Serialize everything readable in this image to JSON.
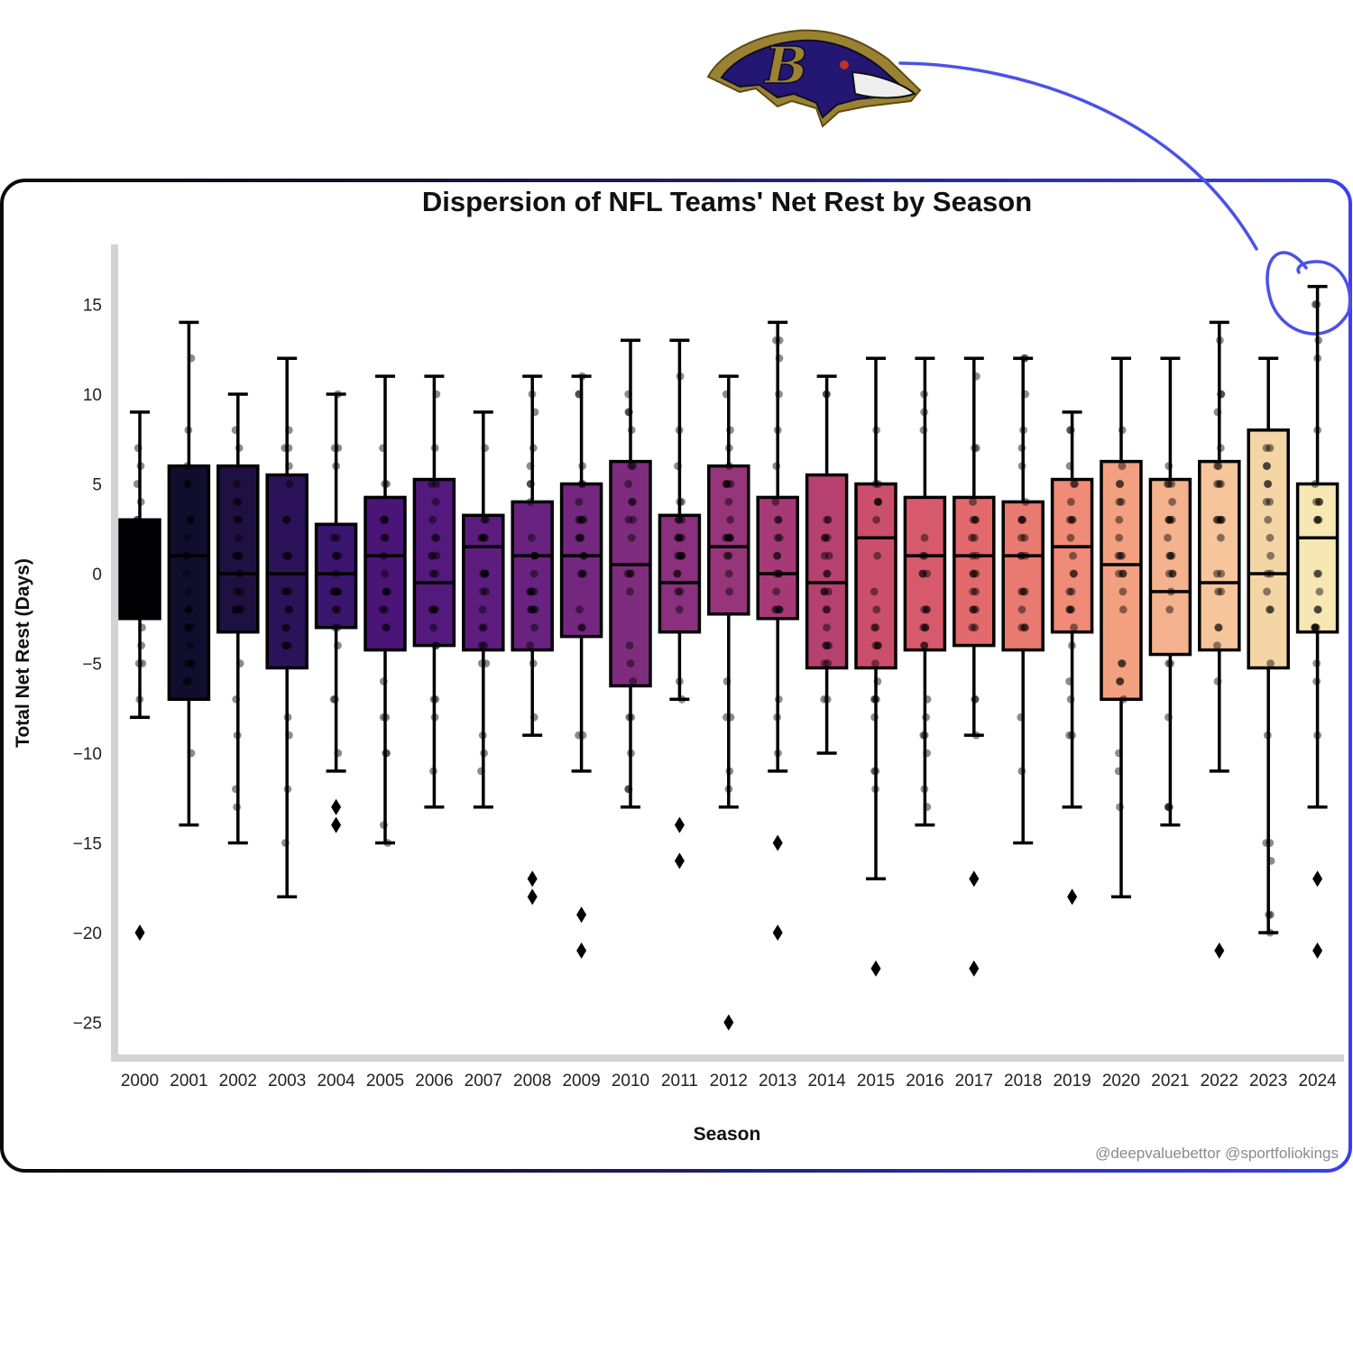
{
  "chart_data": {
    "type": "box",
    "title": "Dispersion of NFL Teams' Net Rest by Season",
    "xlabel": "Season",
    "ylabel": "Total Net Rest (Days)",
    "ylim": [
      -27,
      18
    ],
    "yticks": [
      15,
      10,
      5,
      0,
      -5,
      -10,
      -15,
      -20,
      -25
    ],
    "ytick_labels": [
      "15",
      "10",
      "5",
      "0",
      "−5",
      "−10",
      "−15",
      "−20",
      "−25"
    ],
    "grid": false,
    "credit": "@deepvaluebettor @sportfoliokings",
    "logo_letter": "B",
    "annotation": "circled 2024 maximum (+16)",
    "seasons": [
      {
        "season": "2000",
        "whisker_low": -8,
        "q1": -2.5,
        "median": 1,
        "q3": 3,
        "whisker_high": 9,
        "outliers": [
          -20
        ],
        "color": "#000004"
      },
      {
        "season": "2001",
        "whisker_low": -14,
        "q1": -7,
        "median": 1,
        "q3": 6,
        "whisker_high": 14,
        "outliers": [],
        "color": "#110d2d"
      },
      {
        "season": "2002",
        "whisker_low": -15,
        "q1": -3.25,
        "median": 0,
        "q3": 6,
        "whisker_high": 10,
        "outliers": [],
        "color": "#1e1141"
      },
      {
        "season": "2003",
        "whisker_low": -18,
        "q1": -5.25,
        "median": 0,
        "q3": 5.5,
        "whisker_high": 12,
        "outliers": [],
        "color": "#2c1359"
      },
      {
        "season": "2004",
        "whisker_low": -11,
        "q1": -3,
        "median": 0,
        "q3": 2.75,
        "whisker_high": 10,
        "outliers": [
          -13,
          -14
        ],
        "color": "#3a156e"
      },
      {
        "season": "2005",
        "whisker_low": -15,
        "q1": -4.25,
        "median": 1,
        "q3": 4.25,
        "whisker_high": 11,
        "outliers": [],
        "color": "#4a1577"
      },
      {
        "season": "2006",
        "whisker_low": -13,
        "q1": -4,
        "median": -0.5,
        "q3": 5.25,
        "whisker_high": 11,
        "outliers": [],
        "color": "#53197c"
      },
      {
        "season": "2007",
        "whisker_low": -13,
        "q1": -4.25,
        "median": 1.5,
        "q3": 3.25,
        "whisker_high": 9,
        "outliers": [],
        "color": "#5d1d7f"
      },
      {
        "season": "2008",
        "whisker_low": -9,
        "q1": -4.25,
        "median": 1,
        "q3": 4,
        "whisker_high": 11,
        "outliers": [
          -17,
          -18
        ],
        "color": "#682280"
      },
      {
        "season": "2009",
        "whisker_low": -11,
        "q1": -3.5,
        "median": 1,
        "q3": 5,
        "whisker_high": 11,
        "outliers": [
          -19,
          -21
        ],
        "color": "#73277f"
      },
      {
        "season": "2010",
        "whisker_low": -13,
        "q1": -6.25,
        "median": 0.5,
        "q3": 6.25,
        "whisker_high": 13,
        "outliers": [],
        "color": "#7e2c7e"
      },
      {
        "season": "2011",
        "whisker_low": -7,
        "q1": -3.25,
        "median": -0.5,
        "q3": 3.25,
        "whisker_high": 13,
        "outliers": [
          -14,
          -16
        ],
        "color": "#8a307c"
      },
      {
        "season": "2012",
        "whisker_low": -13,
        "q1": -2.25,
        "median": 1.5,
        "q3": 6,
        "whisker_high": 11,
        "outliers": [
          -25
        ],
        "color": "#97357a"
      },
      {
        "season": "2013",
        "whisker_low": -11,
        "q1": -2.5,
        "median": 0,
        "q3": 4.25,
        "whisker_high": 14,
        "outliers": [
          -15,
          -20
        ],
        "color": "#a63a77"
      },
      {
        "season": "2014",
        "whisker_low": -10,
        "q1": -5.25,
        "median": -0.5,
        "q3": 5.5,
        "whisker_high": 11,
        "outliers": [],
        "color": "#b6416f"
      },
      {
        "season": "2015",
        "whisker_low": -17,
        "q1": -5.25,
        "median": 2,
        "q3": 5,
        "whisker_high": 12,
        "outliers": [
          -22
        ],
        "color": "#cb4e6c"
      },
      {
        "season": "2016",
        "whisker_low": -14,
        "q1": -4.25,
        "median": 1,
        "q3": 4.25,
        "whisker_high": 12,
        "outliers": [],
        "color": "#d75a6c"
      },
      {
        "season": "2017",
        "whisker_low": -9,
        "q1": -4,
        "median": 1,
        "q3": 4.25,
        "whisker_high": 12,
        "outliers": [
          -17,
          -22
        ],
        "color": "#e26a6c"
      },
      {
        "season": "2018",
        "whisker_low": -15,
        "q1": -4.25,
        "median": 1,
        "q3": 4,
        "whisker_high": 12,
        "outliers": [],
        "color": "#e97a71"
      },
      {
        "season": "2019",
        "whisker_low": -13,
        "q1": -3.25,
        "median": 1.5,
        "q3": 5.25,
        "whisker_high": 9,
        "outliers": [
          -18
        ],
        "color": "#ef8b77"
      },
      {
        "season": "2020",
        "whisker_low": -18,
        "q1": -7,
        "median": 0.5,
        "q3": 6.25,
        "whisker_high": 12,
        "outliers": [],
        "color": "#f2a07f"
      },
      {
        "season": "2021",
        "whisker_low": -14,
        "q1": -4.5,
        "median": -1,
        "q3": 5.25,
        "whisker_high": 12,
        "outliers": [],
        "color": "#f4b28e"
      },
      {
        "season": "2022",
        "whisker_low": -11,
        "q1": -4.25,
        "median": -0.5,
        "q3": 6.25,
        "whisker_high": 14,
        "outliers": [
          -21
        ],
        "color": "#f6c59c"
      },
      {
        "season": "2023",
        "whisker_low": -20,
        "q1": -5.25,
        "median": 0,
        "q3": 8,
        "whisker_high": 12,
        "outliers": [],
        "color": "#f4d6a6"
      },
      {
        "season": "2024",
        "whisker_low": -13,
        "q1": -3.25,
        "median": 2,
        "q3": 5,
        "whisker_high": 16,
        "outliers": [
          -17,
          -21
        ],
        "color": "#f6e7b3"
      }
    ]
  }
}
